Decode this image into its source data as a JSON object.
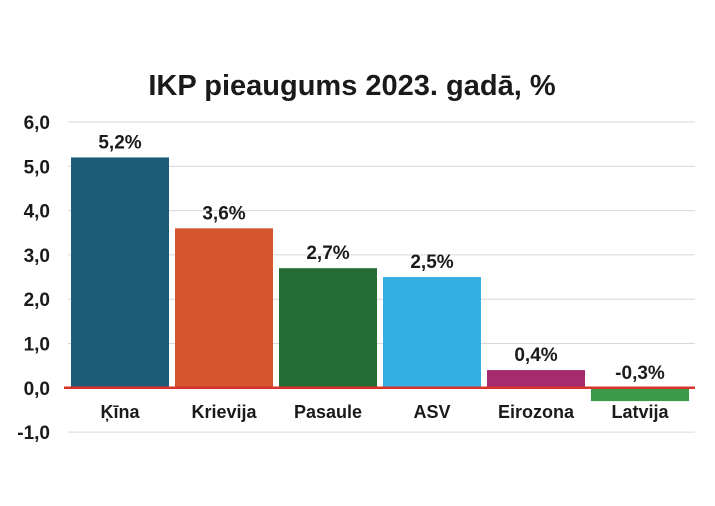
{
  "chart_data": {
    "type": "bar",
    "title": "IKP pieaugums 2023. gadā, %",
    "categories": [
      "Ķīna",
      "Krievija",
      "Pasaule",
      "ASV",
      "Eirozona",
      "Latvija"
    ],
    "values": [
      5.2,
      3.6,
      2.7,
      2.5,
      0.4,
      -0.3
    ],
    "value_labels": [
      "5,2%",
      "3,6%",
      "2,7%",
      "2,5%",
      "0,4%",
      "-0,3%"
    ],
    "colors": [
      "#1d5a78",
      "#d4552e",
      "#256b35",
      "#34aee3",
      "#a52a6e",
      "#3a9a48"
    ],
    "ylim": [
      -1,
      6
    ],
    "yticks": [
      6,
      5,
      4,
      3,
      2,
      1,
      0,
      -1
    ],
    "ytick_labels": [
      "6,0",
      "5,0",
      "4,0",
      "3,0",
      "2,0",
      "1,0",
      "0,0",
      "-1,0"
    ],
    "grid": true,
    "zero_line_color": "#d9312b"
  }
}
